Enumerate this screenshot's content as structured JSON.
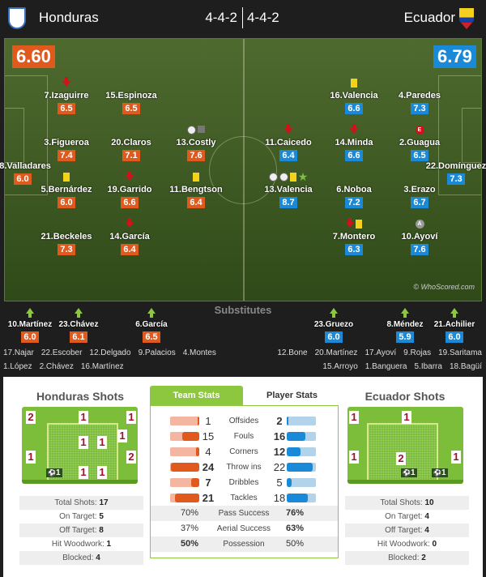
{
  "header": {
    "home_team": "Honduras",
    "away_team": "Ecuador",
    "home_formation": "4-4-2",
    "away_formation": "4-4-2",
    "home_rating": "6.60",
    "away_rating": "6.79",
    "watermark": "© WhoScored.com"
  },
  "colors": {
    "home": "#e05a1e",
    "away": "#1a8ad8",
    "home_light": "#f4b6a0",
    "away_light": "#b3d3ea",
    "accent": "#8dc63f"
  },
  "home_players": [
    {
      "name": "7.Izaguirre",
      "rating": "6.5",
      "events": [
        "arrow-down"
      ]
    },
    {
      "name": "15.Espinoza",
      "rating": "6.5",
      "events": []
    },
    {
      "name": "3.Figueroa",
      "rating": "7.4",
      "events": []
    },
    {
      "name": "20.Claros",
      "rating": "7.1",
      "events": []
    },
    {
      "name": "13.Costly",
      "rating": "7.6",
      "events": [
        "ball",
        "post"
      ]
    },
    {
      "name": "18.Valladares",
      "rating": "6.0",
      "events": []
    },
    {
      "name": "5.Bernárdez",
      "rating": "6.0",
      "events": [
        "ycard"
      ]
    },
    {
      "name": "19.Garrido",
      "rating": "6.6",
      "events": [
        "arrow-down"
      ]
    },
    {
      "name": "11.Bengtson",
      "rating": "6.4",
      "events": [
        "ycard"
      ]
    },
    {
      "name": "21.Beckeles",
      "rating": "7.3",
      "events": []
    },
    {
      "name": "14.García",
      "rating": "6.4",
      "events": [
        "arrow-down"
      ]
    }
  ],
  "away_players": [
    {
      "name": "16.Valencia",
      "rating": "6.6",
      "events": [
        "ycard"
      ]
    },
    {
      "name": "4.Paredes",
      "rating": "7.3",
      "events": []
    },
    {
      "name": "11.Caicedo",
      "rating": "6.4",
      "events": [
        "arrow-down"
      ]
    },
    {
      "name": "14.Minda",
      "rating": "6.6",
      "events": [
        "arrow-down"
      ]
    },
    {
      "name": "2.Guagua",
      "rating": "6.5",
      "events": [
        "error"
      ]
    },
    {
      "name": "22.Domínguez",
      "rating": "7.3",
      "events": []
    },
    {
      "name": "13.Valencia",
      "rating": "8.7",
      "events": [
        "ball",
        "ball",
        "ycard",
        "star"
      ]
    },
    {
      "name": "6.Noboa",
      "rating": "7.2",
      "events": []
    },
    {
      "name": "3.Erazo",
      "rating": "6.7",
      "events": []
    },
    {
      "name": "7.Montero",
      "rating": "6.3",
      "events": [
        "arrow-down",
        "ycard"
      ]
    },
    {
      "name": "10.Ayoví",
      "rating": "7.6",
      "events": [
        "assist"
      ]
    }
  ],
  "substitutes": {
    "title": "Substitutes",
    "home_used": [
      {
        "name": "10.Martínez",
        "rating": "6.0"
      },
      {
        "name": "23.Chávez",
        "rating": "6.1"
      },
      {
        "name": "6.García",
        "rating": "6.5"
      }
    ],
    "away_used": [
      {
        "name": "23.Gruezo",
        "rating": "6.0"
      },
      {
        "name": "8.Méndez",
        "rating": "5.9"
      },
      {
        "name": "21.Achilier",
        "rating": "6.0"
      }
    ],
    "home_bench_1": [
      "17.Najar",
      "22.Escober",
      "12.Delgado",
      "9.Palacios",
      "4.Montes"
    ],
    "home_bench_2": [
      "1.López",
      "2.Chávez",
      "16.Martínez"
    ],
    "away_bench_1": [
      "12.Bone",
      "20.Martínez",
      "17.Ayoví",
      "9.Rojas",
      "19.Saritama"
    ],
    "away_bench_2": [
      "15.Arroyo",
      "1.Banguera",
      "5.Ibarra",
      "18.Bagüí"
    ]
  },
  "home_shots": {
    "title": "Honduras Shots",
    "zones": [
      "2",
      "1",
      "1",
      "1",
      "1",
      "1",
      "1",
      "2",
      "1",
      "1"
    ],
    "goals": [
      "1"
    ],
    "rows": [
      {
        "label": "Total Shots:",
        "value": "17"
      },
      {
        "label": "On Target:",
        "value": "5"
      },
      {
        "label": "Off Target:",
        "value": "8"
      },
      {
        "label": "Hit Woodwork:",
        "value": "1"
      },
      {
        "label": "Blocked:",
        "value": "4"
      }
    ]
  },
  "away_shots": {
    "title": "Ecuador Shots",
    "zones": [
      "1",
      "1",
      "1",
      "2",
      "1"
    ],
    "goals": [
      "1",
      "1"
    ],
    "rows": [
      {
        "label": "Total Shots:",
        "value": "10"
      },
      {
        "label": "On Target:",
        "value": "4"
      },
      {
        "label": "Off Target:",
        "value": "4"
      },
      {
        "label": "Hit Woodwork:",
        "value": "0"
      },
      {
        "label": "Blocked:",
        "value": "2"
      }
    ]
  },
  "stats_tabs": {
    "team": "Team Stats",
    "player": "Player Stats"
  },
  "team_stats": [
    {
      "label": "Offsides",
      "home": "1",
      "away": "2",
      "home_fill": 0.04,
      "away_fill": 0.06,
      "bold": "away"
    },
    {
      "label": "Fouls",
      "home": "15",
      "away": "16",
      "home_fill": 0.58,
      "away_fill": 0.65,
      "bold": "away"
    },
    {
      "label": "Corners",
      "home": "4",
      "away": "12",
      "home_fill": 0.12,
      "away_fill": 0.48,
      "bold": "away"
    },
    {
      "label": "Throw ins",
      "home": "24",
      "away": "22",
      "home_fill": 0.97,
      "away_fill": 0.88,
      "bold": "home"
    },
    {
      "label": "Dribbles",
      "home": "7",
      "away": "5",
      "home_fill": 0.27,
      "away_fill": 0.18,
      "bold": "home"
    },
    {
      "label": "Tackles",
      "home": "21",
      "away": "18",
      "home_fill": 0.83,
      "away_fill": 0.72,
      "bold": "home"
    }
  ],
  "pct_stats": [
    {
      "label": "Pass Success",
      "home": "70%",
      "away": "76%",
      "bold": "away"
    },
    {
      "label": "Aerial Success",
      "home": "37%",
      "away": "63%",
      "bold": "away"
    },
    {
      "label": "Possession",
      "home": "50%",
      "away": "50%",
      "bold": "home"
    }
  ]
}
